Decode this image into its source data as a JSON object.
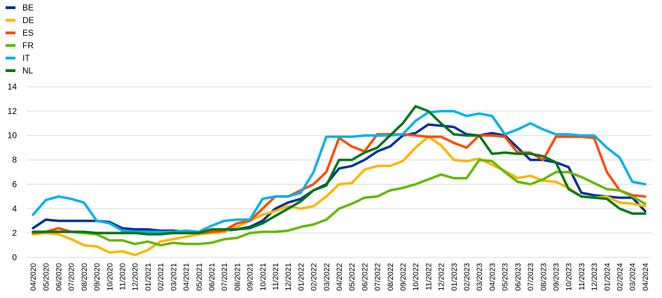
{
  "chart_data": {
    "type": "line",
    "title": "",
    "xlabel": "",
    "ylabel": "",
    "ylim": [
      0,
      14
    ],
    "yticks": [
      "0",
      "2",
      "4",
      "6",
      "8",
      "10",
      "12",
      "14"
    ],
    "grid": true,
    "legend_position": "top-left",
    "x": [
      "04/2020",
      "05/2020",
      "06/2020",
      "07/2020",
      "08/2020",
      "09/2020",
      "10/2020",
      "11/2020",
      "12/2020",
      "01/2021",
      "02/2021",
      "03/2021",
      "04/2021",
      "05/2021",
      "06/2021",
      "07/2021",
      "08/2021",
      "09/2021",
      "10/2021",
      "11/2021",
      "12/2021",
      "01/2022",
      "02/2022",
      "03/2022",
      "04/2022",
      "05/2022",
      "06/2022",
      "07/2022",
      "08/2022",
      "09/2022",
      "10/2022",
      "11/2022",
      "12/2022",
      "01/2023",
      "02/2023",
      "03/2023",
      "04/2023",
      "05/2023",
      "06/2023",
      "07/2023",
      "08/2023",
      "09/2023",
      "10/2023",
      "11/2023",
      "12/2023",
      "01/2024",
      "02/2024",
      "03/2024",
      "04/2024"
    ],
    "series": [
      {
        "name": "BE",
        "color": "#003299",
        "values": [
          2.4,
          3.1,
          3.0,
          3.0,
          3.0,
          3.0,
          2.9,
          2.4,
          2.3,
          2.3,
          2.2,
          2.2,
          2.1,
          2.1,
          2.1,
          2.2,
          2.3,
          2.5,
          3.0,
          4.0,
          4.5,
          4.8,
          5.5,
          6.0,
          7.3,
          7.5,
          8.0,
          8.7,
          9.1,
          10.0,
          10.2,
          10.9,
          10.8,
          10.7,
          10.1,
          10.0,
          10.2,
          10.0,
          9.0,
          8.0,
          8.0,
          7.8,
          7.4,
          5.3,
          5.1,
          5.0,
          4.9,
          4.9,
          3.8
        ]
      },
      {
        "name": "DE",
        "color": "#FFB400",
        "values": [
          1.9,
          2.0,
          1.9,
          1.5,
          1.0,
          0.9,
          0.4,
          0.5,
          0.2,
          0.6,
          1.3,
          1.5,
          1.7,
          1.9,
          2.0,
          2.1,
          2.5,
          3.0,
          3.5,
          3.8,
          4.2,
          4.0,
          4.2,
          5.0,
          6.0,
          6.1,
          7.2,
          7.5,
          7.5,
          7.9,
          9.0,
          9.9,
          9.2,
          8.0,
          7.9,
          8.1,
          7.6,
          7.1,
          6.5,
          6.7,
          6.3,
          6.2,
          5.7,
          5.0,
          4.9,
          5.0,
          4.5,
          4.4,
          4.2
        ]
      },
      {
        "name": "ES",
        "color": "#FF4B00",
        "values": [
          2.0,
          2.1,
          2.4,
          2.1,
          2.0,
          2.0,
          2.0,
          2.0,
          2.0,
          2.0,
          2.0,
          2.0,
          2.0,
          2.0,
          2.1,
          2.2,
          2.8,
          3.0,
          4.0,
          5.0,
          5.0,
          5.5,
          6.0,
          7.0,
          9.8,
          9.1,
          8.7,
          10.1,
          10.1,
          10.1,
          10.0,
          9.9,
          9.9,
          9.4,
          9.0,
          10.0,
          10.0,
          9.9,
          8.6,
          8.6,
          8.0,
          9.9,
          9.9,
          9.9,
          9.8,
          7.0,
          5.5,
          5.1,
          5.0
        ]
      },
      {
        "name": "FR",
        "color": "#65B800",
        "values": [
          2.1,
          2.1,
          2.1,
          2.1,
          2.0,
          1.9,
          1.4,
          1.4,
          1.1,
          1.3,
          1.0,
          1.2,
          1.1,
          1.1,
          1.2,
          1.5,
          1.6,
          2.0,
          2.1,
          2.1,
          2.2,
          2.5,
          2.7,
          3.1,
          4.0,
          4.4,
          4.9,
          5.0,
          5.5,
          5.7,
          6.0,
          6.4,
          6.8,
          6.5,
          6.5,
          8.0,
          7.9,
          7.0,
          6.2,
          6.0,
          6.4,
          7.0,
          7.0,
          6.6,
          6.1,
          5.6,
          5.5,
          5.0,
          4.4
        ]
      },
      {
        "name": "IT",
        "color": "#00B1EA",
        "values": [
          3.5,
          4.7,
          5.0,
          4.8,
          4.5,
          3.0,
          2.8,
          2.2,
          2.1,
          2.1,
          2.1,
          2.1,
          2.2,
          2.1,
          2.6,
          3.0,
          3.1,
          3.1,
          4.8,
          5.0,
          5.0,
          5.3,
          7.0,
          9.9,
          9.9,
          9.9,
          10.0,
          10.0,
          10.0,
          10.1,
          11.2,
          11.9,
          12.0,
          12.0,
          11.6,
          11.8,
          11.6,
          10.1,
          10.5,
          11.0,
          10.5,
          10.1,
          10.1,
          10.0,
          10.0,
          9.0,
          8.2,
          6.2,
          6.0
        ]
      },
      {
        "name": "NL",
        "color": "#007816",
        "values": [
          2.1,
          2.1,
          2.1,
          2.1,
          2.1,
          2.0,
          2.0,
          2.0,
          2.0,
          1.9,
          1.9,
          2.0,
          2.0,
          2.0,
          2.3,
          2.3,
          2.3,
          2.4,
          2.8,
          3.4,
          4.0,
          4.6,
          5.5,
          5.9,
          8.0,
          8.0,
          8.6,
          9.0,
          10.0,
          11.0,
          12.4,
          12.0,
          11.0,
          10.1,
          10.0,
          10.0,
          8.5,
          8.6,
          8.5,
          8.5,
          8.3,
          7.8,
          5.6,
          5.0,
          4.9,
          4.8,
          4.0,
          3.6,
          3.6
        ]
      }
    ]
  }
}
